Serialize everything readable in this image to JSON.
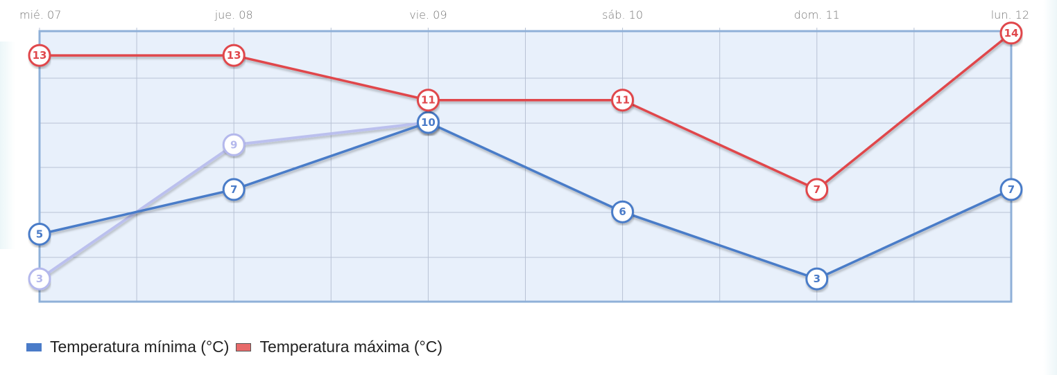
{
  "chart_data": {
    "type": "line",
    "title": "",
    "xlabel": "",
    "ylabel": "",
    "categories": [
      "mié. 07",
      "jue. 08",
      "vie. 09",
      "sáb. 10",
      "dom. 11",
      "lun. 12"
    ],
    "series": [
      {
        "name": "Temperatura mínima (°C)",
        "color": "#4a7bc8",
        "values": [
          5,
          7,
          10,
          6,
          3,
          7
        ]
      },
      {
        "name": "Temperatura máxima (°C)",
        "color": "#e0474c",
        "values": [
          13,
          13,
          11,
          11,
          7,
          14
        ]
      },
      {
        "name": "",
        "color": "#b4b8ec",
        "faded": true,
        "values": [
          3,
          9,
          10,
          null,
          null,
          null
        ]
      }
    ],
    "ylim": [
      1.9,
      14.1
    ],
    "grid": true,
    "legend_position": "bottom-left",
    "data_labels": true
  },
  "legend": {
    "items": [
      {
        "label": "Temperatura mínima (°C)",
        "color": "#4a7bc8"
      },
      {
        "label": "Temperatura máxima (°C)",
        "color": "#e86a6a"
      }
    ]
  },
  "colors": {
    "plot_bg": "#e8f0fb",
    "plot_border": "#8fb0d8",
    "grid": "#b8c2d4",
    "tick_text": "#777777"
  }
}
